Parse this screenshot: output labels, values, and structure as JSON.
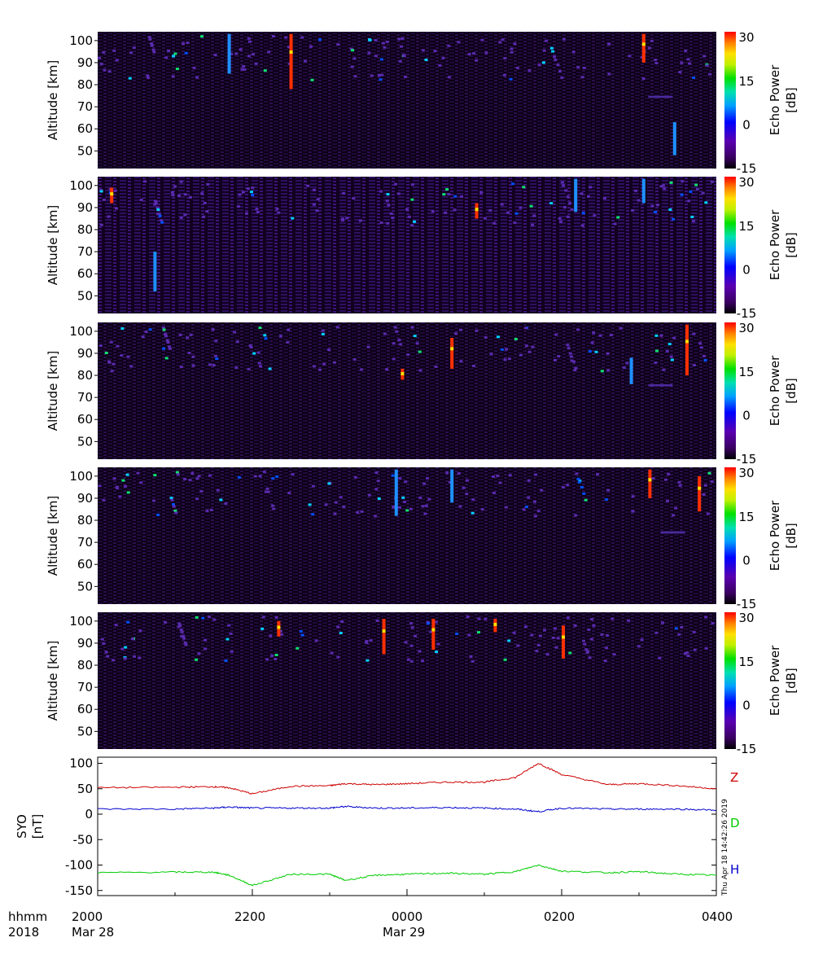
{
  "chart_data": [
    {
      "type": "heatmap",
      "panel": 1,
      "ylabel": "Altitude  [km]",
      "ylim": [
        42,
        104
      ],
      "yticks": [
        "100",
        "90",
        "80",
        "70",
        "60",
        "50"
      ],
      "colorbar": {
        "label": [
          "Echo Power",
          "[dB]"
        ],
        "range": [
          -15,
          32
        ],
        "ticks": [
          "30",
          "15",
          "0",
          "-15"
        ]
      },
      "time_range": [
        "2000 Mar 28",
        "0400 Mar 29"
      ],
      "features": [
        {
          "t": 0.21,
          "alt_top": 103,
          "alt_bottom": 85,
          "level": "medium"
        },
        {
          "t": 0.31,
          "alt_top": 103,
          "alt_bottom": 78,
          "level": "high"
        },
        {
          "t": 0.88,
          "alt_top": 103,
          "alt_bottom": 90,
          "level": "high"
        },
        {
          "t": 0.93,
          "alt_top": 63,
          "alt_bottom": 48,
          "level": "medium"
        },
        {
          "t": 0.89,
          "alt_top": 75,
          "alt_bottom": 74,
          "level": "low"
        }
      ]
    },
    {
      "type": "heatmap",
      "panel": 2,
      "ylabel": "Altitude  [km]",
      "ylim": [
        42,
        104
      ],
      "yticks": [
        "100",
        "90",
        "80",
        "70",
        "60",
        "50"
      ],
      "colorbar": {
        "label": [
          "Echo Power",
          "[dB]"
        ],
        "range": [
          -15,
          32
        ],
        "ticks": [
          "30",
          "15",
          "0",
          "-15"
        ]
      },
      "time_range": [
        "2000 Mar 28",
        "0400 Mar 29"
      ],
      "features": [
        {
          "t": 0.09,
          "alt_top": 70,
          "alt_bottom": 52,
          "level": "medium"
        },
        {
          "t": 0.02,
          "alt_top": 99,
          "alt_bottom": 92,
          "level": "high"
        },
        {
          "t": 0.61,
          "alt_top": 92,
          "alt_bottom": 85,
          "level": "high"
        },
        {
          "t": 0.77,
          "alt_top": 103,
          "alt_bottom": 88,
          "level": "medium"
        },
        {
          "t": 0.88,
          "alt_top": 103,
          "alt_bottom": 92,
          "level": "medium"
        }
      ]
    },
    {
      "type": "heatmap",
      "panel": 3,
      "ylabel": "Altitude  [km]",
      "ylim": [
        42,
        104
      ],
      "yticks": [
        "100",
        "90",
        "80",
        "70",
        "60",
        "50"
      ],
      "colorbar": {
        "label": [
          "Echo Power",
          "[dB]"
        ],
        "range": [
          -15,
          32
        ],
        "ticks": [
          "30",
          "15",
          "0",
          "-15"
        ]
      },
      "time_range": [
        "2000 Mar 28",
        "0400 Mar 29"
      ],
      "features": [
        {
          "t": 0.57,
          "alt_top": 97,
          "alt_bottom": 83,
          "level": "high"
        },
        {
          "t": 0.49,
          "alt_top": 83,
          "alt_bottom": 78,
          "level": "high"
        },
        {
          "t": 0.86,
          "alt_top": 88,
          "alt_bottom": 76,
          "level": "medium"
        },
        {
          "t": 0.95,
          "alt_top": 103,
          "alt_bottom": 80,
          "level": "high"
        },
        {
          "t": 0.89,
          "alt_top": 76,
          "alt_bottom": 75,
          "level": "low"
        }
      ]
    },
    {
      "type": "heatmap",
      "panel": 4,
      "ylabel": "Altitude  [km]",
      "ylim": [
        42,
        104
      ],
      "yticks": [
        "100",
        "90",
        "80",
        "70",
        "60",
        "50"
      ],
      "colorbar": {
        "label": [
          "Echo Power",
          "[dB]"
        ],
        "range": [
          -15,
          32
        ],
        "ticks": [
          "30",
          "15",
          "0",
          "-15"
        ]
      },
      "time_range": [
        "2000 Mar 28",
        "0400 Mar 29"
      ],
      "features": [
        {
          "t": 0.48,
          "alt_top": 103,
          "alt_bottom": 82,
          "level": "medium"
        },
        {
          "t": 0.57,
          "alt_top": 103,
          "alt_bottom": 88,
          "level": "medium"
        },
        {
          "t": 0.89,
          "alt_top": 103,
          "alt_bottom": 90,
          "level": "high"
        },
        {
          "t": 0.97,
          "alt_top": 100,
          "alt_bottom": 84,
          "level": "high"
        },
        {
          "t": 0.91,
          "alt_top": 75,
          "alt_bottom": 74,
          "level": "low"
        }
      ]
    },
    {
      "type": "heatmap",
      "panel": 5,
      "ylabel": "Altitude  [km]",
      "ylim": [
        42,
        104
      ],
      "yticks": [
        "100",
        "90",
        "80",
        "70",
        "60",
        "50"
      ],
      "colorbar": {
        "label": [
          "Echo Power",
          "[dB]"
        ],
        "range": [
          -15,
          32
        ],
        "ticks": [
          "30",
          "15",
          "0",
          "-15"
        ]
      },
      "time_range": [
        "2000 Mar 28",
        "0400 Mar 29"
      ],
      "features": [
        {
          "t": 0.29,
          "alt_top": 100,
          "alt_bottom": 93,
          "level": "high"
        },
        {
          "t": 0.46,
          "alt_top": 101,
          "alt_bottom": 85,
          "level": "high"
        },
        {
          "t": 0.54,
          "alt_top": 101,
          "alt_bottom": 87,
          "level": "high"
        },
        {
          "t": 0.75,
          "alt_top": 98,
          "alt_bottom": 83,
          "level": "high"
        },
        {
          "t": 0.64,
          "alt_top": 101,
          "alt_bottom": 95,
          "level": "high"
        }
      ]
    },
    {
      "type": "line",
      "panel": 6,
      "ylabel": [
        "SYO",
        "[nT]"
      ],
      "ylim": [
        -160,
        112
      ],
      "yticks": [
        "100",
        "50",
        "0",
        "-50",
        "-100",
        "-150"
      ],
      "xticks": [
        "2000",
        "2200",
        "0000",
        "0200",
        "0400"
      ],
      "xdates": [
        "Mar 28",
        "Mar 29"
      ],
      "x_hours_from_2000": [
        0,
        1,
        1.5,
        1.7,
        2,
        2.5,
        3,
        3.2,
        3.6,
        4,
        4.5,
        5,
        5.4,
        5.7,
        6,
        6.6,
        7,
        7.5,
        8
      ],
      "series": [
        {
          "name": "Z",
          "color": "#cc0000",
          "values": [
            52,
            53,
            54,
            52,
            40,
            55,
            56,
            60,
            58,
            60,
            63,
            63,
            72,
            100,
            78,
            58,
            60,
            56,
            50
          ]
        },
        {
          "name": "D",
          "color": "#0000cc",
          "values": [
            10,
            10,
            12,
            14,
            12,
            12,
            12,
            15,
            12,
            12,
            13,
            12,
            10,
            5,
            12,
            10,
            10,
            10,
            8
          ]
        },
        {
          "name": "H",
          "color": "#00cc00",
          "values": [
            -115,
            -114,
            -114,
            -120,
            -140,
            -118,
            -118,
            -130,
            -120,
            -118,
            -116,
            -118,
            -113,
            -100,
            -112,
            -115,
            -113,
            -118,
            -120
          ]
        }
      ]
    }
  ],
  "time_axis": {
    "header": "hhmm",
    "year": "2018",
    "ticks": [
      "2000",
      "2200",
      "0000",
      "0200",
      "0400"
    ],
    "dates": [
      "Mar 28",
      "Mar 29"
    ]
  },
  "legend": {
    "z": "Z",
    "d": "D",
    "h": "H"
  },
  "timestamp": "Thu Apr 18 14:42:26 2019",
  "colors": {
    "z": "#cc0000",
    "d": "#0000cc",
    "h": "#00cc00",
    "background": "#ffffff",
    "field": "#0a0010"
  }
}
